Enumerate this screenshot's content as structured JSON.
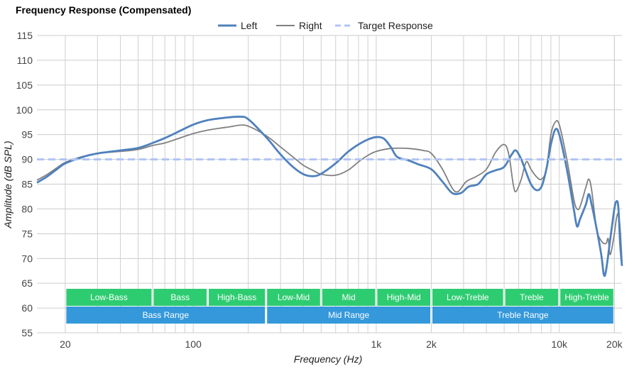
{
  "chart_data": {
    "type": "line",
    "title": "Frequency Response (Compensated)",
    "xlabel": "Frequency (Hz)",
    "ylabel": "Amplitude (dB SPL)",
    "x_scale": "log",
    "xlim": [
      14,
      22000
    ],
    "ylim": [
      55,
      115
    ],
    "grid": true,
    "legend_position": "top-center",
    "y_ticks": [
      55,
      60,
      65,
      70,
      75,
      80,
      85,
      90,
      95,
      100,
      105,
      110,
      115
    ],
    "x_tick_labels": [
      {
        "value": 20,
        "label": "20"
      },
      {
        "value": 100,
        "label": "100"
      },
      {
        "value": 1000,
        "label": "1k"
      },
      {
        "value": 2000,
        "label": "2k"
      },
      {
        "value": 10000,
        "label": "10k"
      },
      {
        "value": 20000,
        "label": "20k"
      }
    ],
    "series": [
      {
        "name": "Left",
        "color": "#4f81bd",
        "style": "solid",
        "points": [
          [
            14,
            85.3
          ],
          [
            16,
            86.6
          ],
          [
            18,
            88
          ],
          [
            20,
            89.2
          ],
          [
            25,
            90.5
          ],
          [
            30,
            91.2
          ],
          [
            40,
            91.8
          ],
          [
            50,
            92.3
          ],
          [
            60,
            93.3
          ],
          [
            70,
            94.3
          ],
          [
            80,
            95.3
          ],
          [
            100,
            97
          ],
          [
            120,
            97.9
          ],
          [
            150,
            98.4
          ],
          [
            180,
            98.6
          ],
          [
            200,
            98.1
          ],
          [
            250,
            94.5
          ],
          [
            300,
            91
          ],
          [
            350,
            88.5
          ],
          [
            400,
            87
          ],
          [
            450,
            86.6
          ],
          [
            500,
            87.1
          ],
          [
            600,
            89.2
          ],
          [
            700,
            91.5
          ],
          [
            800,
            93
          ],
          [
            900,
            94
          ],
          [
            1000,
            94.5
          ],
          [
            1100,
            94.2
          ],
          [
            1200,
            92.5
          ],
          [
            1300,
            90.5
          ],
          [
            1500,
            89.8
          ],
          [
            1700,
            89
          ],
          [
            2000,
            88
          ],
          [
            2300,
            85.5
          ],
          [
            2600,
            83.2
          ],
          [
            2900,
            83.2
          ],
          [
            3200,
            84.5
          ],
          [
            3600,
            85
          ],
          [
            4000,
            87
          ],
          [
            4500,
            87.8
          ],
          [
            5000,
            88.5
          ],
          [
            5500,
            91
          ],
          [
            5800,
            91.8
          ],
          [
            6200,
            90
          ],
          [
            6500,
            88
          ],
          [
            7000,
            85
          ],
          [
            7500,
            83.8
          ],
          [
            8000,
            84.5
          ],
          [
            8500,
            88
          ],
          [
            9000,
            93
          ],
          [
            9500,
            96
          ],
          [
            10000,
            95
          ],
          [
            11000,
            88
          ],
          [
            12000,
            80
          ],
          [
            12500,
            76.5
          ],
          [
            13000,
            78
          ],
          [
            14000,
            81
          ],
          [
            14500,
            83
          ],
          [
            15000,
            81
          ],
          [
            16000,
            76
          ],
          [
            17000,
            70.5
          ],
          [
            17500,
            66.8
          ],
          [
            18000,
            67.5
          ],
          [
            19000,
            74
          ],
          [
            20000,
            80
          ],
          [
            20500,
            81.5
          ],
          [
            21000,
            80.5
          ],
          [
            21500,
            73
          ],
          [
            22000,
            68.5
          ]
        ]
      },
      {
        "name": "Right",
        "color": "#808080",
        "style": "solid",
        "points": [
          [
            14,
            85.8
          ],
          [
            16,
            87
          ],
          [
            18,
            88.3
          ],
          [
            20,
            89.4
          ],
          [
            25,
            90.6
          ],
          [
            30,
            91.2
          ],
          [
            40,
            91.6
          ],
          [
            50,
            92
          ],
          [
            60,
            92.8
          ],
          [
            70,
            93.3
          ],
          [
            80,
            94
          ],
          [
            100,
            95.2
          ],
          [
            120,
            95.9
          ],
          [
            140,
            96.3
          ],
          [
            160,
            96.6
          ],
          [
            180,
            96.9
          ],
          [
            200,
            96.7
          ],
          [
            250,
            94.8
          ],
          [
            300,
            92.5
          ],
          [
            350,
            90.5
          ],
          [
            400,
            88.8
          ],
          [
            450,
            87.8
          ],
          [
            500,
            87
          ],
          [
            600,
            86.8
          ],
          [
            700,
            87.8
          ],
          [
            800,
            89.5
          ],
          [
            900,
            90.8
          ],
          [
            1000,
            91.6
          ],
          [
            1200,
            92.2
          ],
          [
            1500,
            92.2
          ],
          [
            1800,
            91.8
          ],
          [
            2000,
            91.2
          ],
          [
            2300,
            88
          ],
          [
            2600,
            84.2
          ],
          [
            2800,
            83.5
          ],
          [
            3100,
            85.5
          ],
          [
            3500,
            86.5
          ],
          [
            4000,
            88
          ],
          [
            4500,
            91.5
          ],
          [
            5000,
            93
          ],
          [
            5300,
            91
          ],
          [
            5600,
            85
          ],
          [
            5800,
            83.5
          ],
          [
            6200,
            86
          ],
          [
            6600,
            89.5
          ],
          [
            7000,
            88
          ],
          [
            7500,
            86.5
          ],
          [
            8000,
            86
          ],
          [
            8500,
            88
          ],
          [
            9000,
            95
          ],
          [
            9500,
            97.5
          ],
          [
            10000,
            97
          ],
          [
            11000,
            90
          ],
          [
            12000,
            82
          ],
          [
            12500,
            80
          ],
          [
            13000,
            80.5
          ],
          [
            14000,
            84.5
          ],
          [
            14500,
            86
          ],
          [
            15000,
            84
          ],
          [
            16000,
            76
          ],
          [
            17000,
            73.5
          ],
          [
            18000,
            73
          ],
          [
            18500,
            74
          ],
          [
            19000,
            70.8
          ],
          [
            20000,
            75
          ],
          [
            20500,
            78
          ],
          [
            21000,
            79
          ],
          [
            21500,
            76
          ],
          [
            22000,
            69.5
          ]
        ]
      },
      {
        "name": "Target Response",
        "color": "#b0c4f6",
        "style": "dashed",
        "points": [
          [
            14,
            90
          ],
          [
            22000,
            90
          ]
        ]
      }
    ],
    "bands_top": [
      {
        "label": "Low-Bass",
        "from": 20,
        "to": 60,
        "color": "#2ecc71"
      },
      {
        "label": "Bass",
        "from": 60,
        "to": 120,
        "color": "#2ecc71"
      },
      {
        "label": "High-Bass",
        "from": 120,
        "to": 250,
        "color": "#2ecc71"
      },
      {
        "label": "Low-Mid",
        "from": 250,
        "to": 500,
        "color": "#2ecc71"
      },
      {
        "label": "Mid",
        "from": 500,
        "to": 1000,
        "color": "#2ecc71"
      },
      {
        "label": "High-Mid",
        "from": 1000,
        "to": 2000,
        "color": "#2ecc71"
      },
      {
        "label": "Low-Treble",
        "from": 2000,
        "to": 5000,
        "color": "#2ecc71"
      },
      {
        "label": "Treble",
        "from": 5000,
        "to": 10000,
        "color": "#2ecc71"
      },
      {
        "label": "High-Treble",
        "from": 10000,
        "to": 20000,
        "color": "#2ecc71"
      }
    ],
    "bands_bottom": [
      {
        "label": "Bass Range",
        "from": 20,
        "to": 250,
        "color": "#3498db"
      },
      {
        "label": "Mid Range",
        "from": 250,
        "to": 2000,
        "color": "#3498db"
      },
      {
        "label": "Treble Range",
        "from": 2000,
        "to": 20000,
        "color": "#3498db"
      }
    ]
  }
}
